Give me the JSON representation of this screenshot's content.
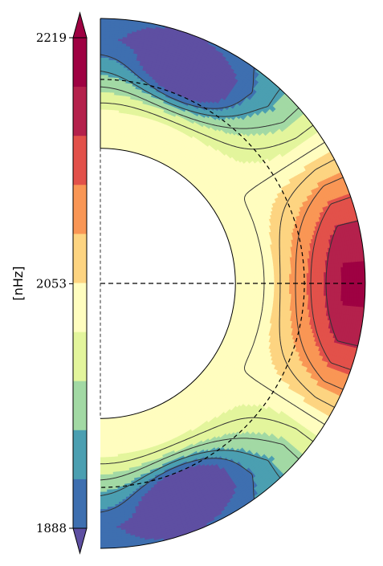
{
  "chart_data": {
    "type": "heatmap",
    "title": "",
    "colorbar": {
      "label": "[nHz]",
      "vmin": 1888,
      "vmax": 2219,
      "ticks": [
        {
          "value": 2219,
          "label": "2219"
        },
        {
          "value": 2053,
          "label": "2053"
        },
        {
          "value": 1888,
          "label": "1888"
        }
      ],
      "levels": 10,
      "extend": "both",
      "colormap": [
        "#5e4fa2",
        "#3e6fb0",
        "#4b9fb1",
        "#a2d9a4",
        "#e3f59c",
        "#fffdbf",
        "#fdd481",
        "#f99655",
        "#e2514a",
        "#b4214c",
        "#9e0142"
      ]
    },
    "domain": {
      "shape": "meridional half-annulus",
      "inner_radius_fraction": 0.51,
      "dashed_radius_fraction": 0.77,
      "equator_dashed": true
    },
    "features": [
      {
        "region": "equator near surface",
        "value": 2219
      },
      {
        "region": "high latitudes",
        "value": 1888
      },
      {
        "region": "deep interior",
        "value": 2053
      }
    ]
  }
}
